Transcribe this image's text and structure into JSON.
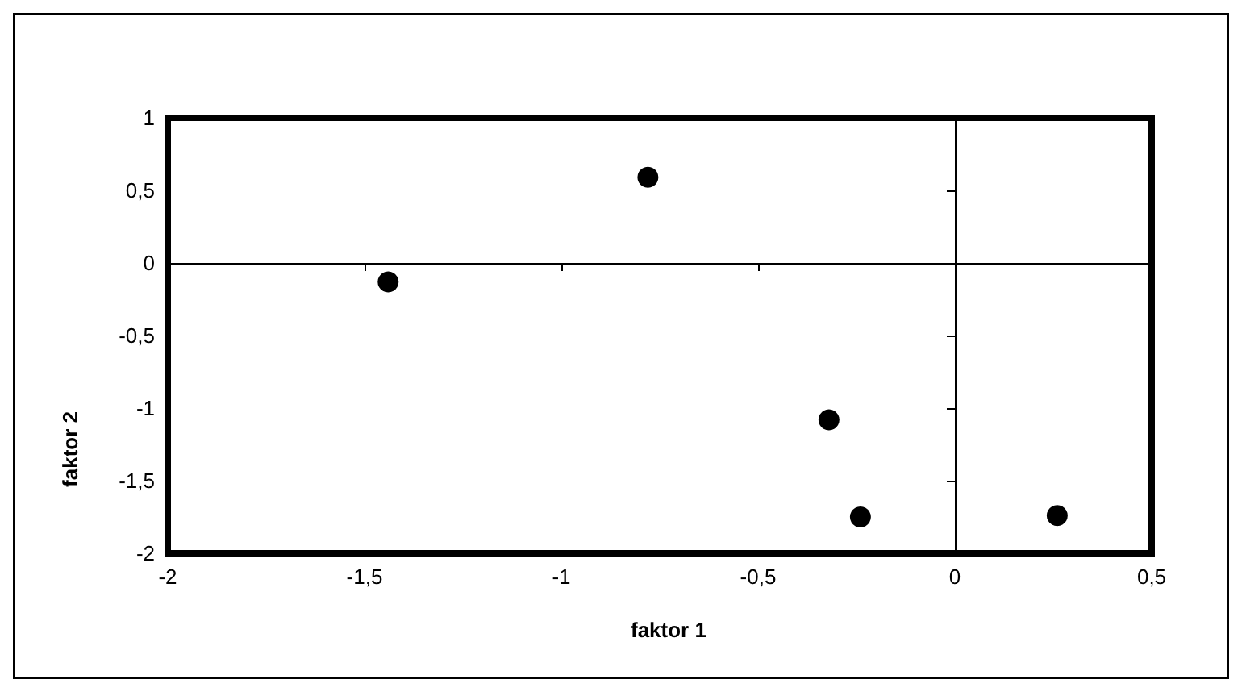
{
  "chart_data": {
    "type": "scatter",
    "xlabel": "faktor 1",
    "ylabel": "faktor 2",
    "x": [
      -1.44,
      -0.78,
      -0.32,
      -0.24,
      0.26
    ],
    "series": [
      {
        "color": "#000000",
        "values": [
          -0.13,
          0.59,
          -1.08,
          -1.75,
          -1.74
        ]
      }
    ],
    "xlim": [
      -2,
      0.5
    ],
    "xticks": [
      -2,
      {
        "value": -1.5,
        "label": "-1,5"
      },
      -1,
      {
        "value": -0.5,
        "label": "-0,5"
      },
      0,
      {
        "value": 0.5,
        "label": "0,5"
      }
    ],
    "ylim": [
      -2,
      1
    ],
    "yticks": [
      -2,
      {
        "value": -1.5,
        "label": "-1,5"
      },
      -1,
      {
        "value": -0.5,
        "label": "-0,5"
      },
      0,
      {
        "value": 0.5,
        "label": "0,5"
      },
      1
    ],
    "marker": "circle"
  }
}
